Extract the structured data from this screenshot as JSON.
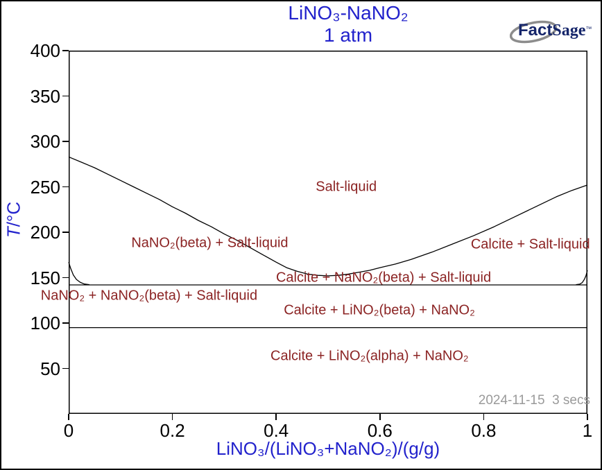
{
  "header": {
    "title_color": "#2222cc"
  },
  "axes": {
    "y_symbol": "T",
    "y_unit": "/°C",
    "label_color": "#2222cc"
  },
  "logo": {
    "fact": "Fact",
    "sage": "Sage",
    "tm": "™"
  },
  "footer_stamp": "2024-11-15  3 secs",
  "chart_data": {
    "type": "line",
    "title": "LiNO₃-NaNO₂",
    "subtitle": "1 atm",
    "xlabel": "LiNO₃/(LiNO₃+NaNO₂)/(g/g)",
    "ylabel": "T/°C",
    "xlim": [
      0,
      1
    ],
    "ylim": [
      0,
      400
    ],
    "xticks": [
      0,
      0.2,
      0.4,
      0.6,
      0.8,
      1
    ],
    "yticks": [
      400,
      350,
      300,
      250,
      200,
      150,
      100,
      50
    ],
    "grid": false,
    "legend": false,
    "curve_color": "#000000",
    "region_label_color": "#8b2323",
    "curves": [
      {
        "name": "liquidus",
        "points": [
          [
            0,
            283
          ],
          [
            0.025,
            277
          ],
          [
            0.05,
            271
          ],
          [
            0.075,
            264
          ],
          [
            0.1,
            257
          ],
          [
            0.125,
            250
          ],
          [
            0.15,
            243
          ],
          [
            0.175,
            236
          ],
          [
            0.2,
            228
          ],
          [
            0.225,
            221
          ],
          [
            0.25,
            213
          ],
          [
            0.275,
            206
          ],
          [
            0.3,
            198
          ],
          [
            0.325,
            191
          ],
          [
            0.35,
            183
          ],
          [
            0.375,
            175
          ],
          [
            0.4,
            167
          ],
          [
            0.42,
            161
          ],
          [
            0.44,
            157
          ],
          [
            0.46,
            154
          ],
          [
            0.48,
            152.5
          ],
          [
            0.5,
            152
          ],
          [
            0.52,
            152.5
          ],
          [
            0.54,
            154
          ],
          [
            0.56,
            156
          ],
          [
            0.58,
            158
          ],
          [
            0.6,
            161
          ],
          [
            0.63,
            165
          ],
          [
            0.66,
            170
          ],
          [
            0.7,
            178
          ],
          [
            0.74,
            187
          ],
          [
            0.78,
            196
          ],
          [
            0.82,
            206
          ],
          [
            0.86,
            217
          ],
          [
            0.9,
            228
          ],
          [
            0.94,
            239
          ],
          [
            0.97,
            246
          ],
          [
            1,
            252
          ]
        ]
      },
      {
        "name": "nano2-transition-left",
        "points": [
          [
            0,
            167
          ],
          [
            0.004,
            160
          ],
          [
            0.009,
            153
          ],
          [
            0.015,
            148
          ],
          [
            0.022,
            145
          ],
          [
            0.03,
            143
          ],
          [
            0.04,
            142.2
          ]
        ]
      },
      {
        "name": "right-edge-boundary",
        "points": [
          [
            1,
            158
          ],
          [
            0.997,
            152
          ],
          [
            0.994,
            148
          ],
          [
            0.99,
            144.5
          ],
          [
            0.985,
            142.8
          ],
          [
            0.978,
            142.2
          ]
        ]
      }
    ],
    "isotherms": [
      {
        "name": "eutectic-line",
        "T": 142
      },
      {
        "name": "lino2-alpha-beta-line",
        "T": 95
      }
    ],
    "regions": [
      {
        "label": "Salt-liquid",
        "x": 0.535,
        "T": 250
      },
      {
        "label": "NaNO₂(beta) + Salt-liquid",
        "x": 0.272,
        "T": 188
      },
      {
        "label": "Calcite + Salt-liquid",
        "x": 0.89,
        "T": 186
      },
      {
        "label": "Calcite + NaNO₂(beta) + Salt-liquid",
        "x": 0.607,
        "T": 150
      },
      {
        "label": "NaNO₂ + NaNO₂(beta) + Salt-liquid",
        "x": 0.155,
        "T": 130
      },
      {
        "label": "Calcite + LiNO₂(beta) + NaNO₂",
        "x": 0.599,
        "T": 114
      },
      {
        "label": "Calcite + LiNO₂(alpha) + NaNO₂",
        "x": 0.58,
        "T": 63
      }
    ]
  }
}
